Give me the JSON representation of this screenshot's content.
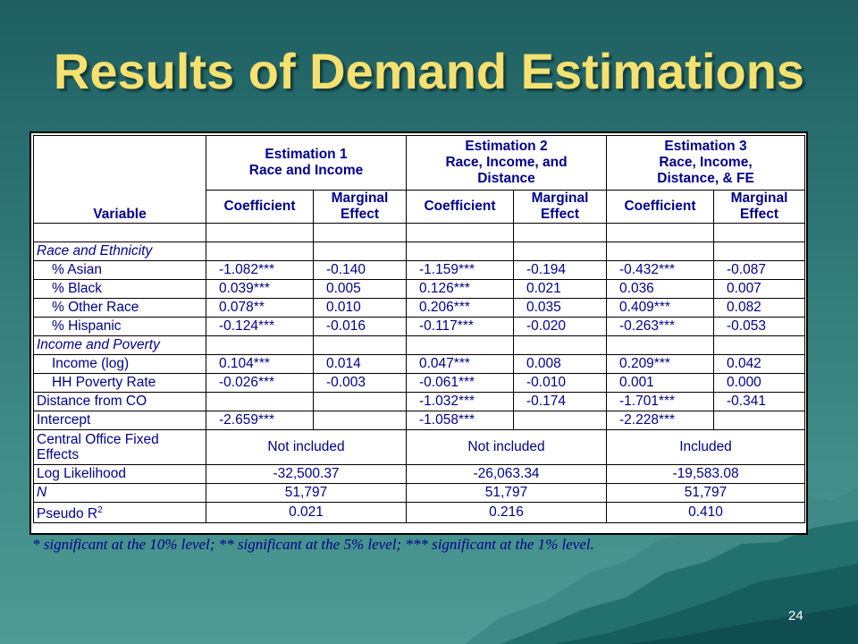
{
  "title": "Results of Demand Estimations",
  "slide_number": "24",
  "table": {
    "variable_label": "Variable",
    "estimations": [
      {
        "line1": "Estimation 1",
        "line2": "Race and Income",
        "line3": ""
      },
      {
        "line1": "Estimation 2",
        "line2": "Race, Income, and",
        "line3": "Distance"
      },
      {
        "line1": "Estimation 3",
        "line2": "Race, Income,",
        "line3": "Distance, & FE"
      }
    ],
    "coefficient_label": "Coefficient",
    "marginal_line1": "Marginal",
    "marginal_line2": "Effect",
    "rows": [
      {
        "label": "Race and Ethnicity",
        "kind": "section"
      },
      {
        "label": "% Asian",
        "kind": "data",
        "values": [
          "-1.082***",
          "-0.140",
          "-1.159***",
          "-0.194",
          "-0.432***",
          "-0.087"
        ]
      },
      {
        "label": "% Black",
        "kind": "data",
        "values": [
          "0.039***",
          "0.005",
          "0.126***",
          "0.021",
          "0.036",
          "0.007"
        ]
      },
      {
        "label": "% Other Race",
        "kind": "data",
        "values": [
          "0.078**",
          "0.010",
          "0.206***",
          "0.035",
          "0.409***",
          "0.082"
        ]
      },
      {
        "label": "% Hispanic",
        "kind": "data",
        "values": [
          "-0.124***",
          "-0.016",
          "-0.117***",
          "-0.020",
          "-0.263***",
          "-0.053"
        ]
      },
      {
        "label": "Income and Poverty",
        "kind": "section"
      },
      {
        "label": "Income (log)",
        "kind": "data",
        "values": [
          "0.104***",
          "0.014",
          "0.047***",
          "0.008",
          "0.209***",
          "0.042"
        ]
      },
      {
        "label": "HH Poverty Rate",
        "kind": "data",
        "values": [
          "-0.026***",
          "-0.003",
          "-0.061***",
          "-0.010",
          "0.001",
          "0.000"
        ]
      },
      {
        "label": "Distance from CO",
        "kind": "toplevel",
        "values": [
          "",
          "",
          "-1.032***",
          "-0.174",
          "-1.701***",
          "-0.341"
        ]
      },
      {
        "label": "Intercept",
        "kind": "toplevel",
        "values": [
          "-2.659***",
          "",
          "-1.058***",
          "",
          "-2.228***",
          ""
        ]
      }
    ],
    "fixed_effects": {
      "label_line1": "Central Office Fixed",
      "label_line2": "Effects",
      "values": [
        "Not included",
        "Not included",
        "Included"
      ]
    },
    "log_likelihood": {
      "label": "Log Likelihood",
      "values": [
        "-32,500.37",
        "-26,063.34",
        "-19,583.08"
      ]
    },
    "n": {
      "label": "N",
      "values": [
        "51,797",
        "51,797",
        "51,797"
      ]
    },
    "pseudo_r2": {
      "label": "Pseudo R",
      "sup": "2",
      "values": [
        "0.021",
        "0.216",
        "0.410"
      ]
    }
  },
  "footnote": "* significant at the 10% level;    ** significant at the 5% level;    *** significant at the 1% level."
}
